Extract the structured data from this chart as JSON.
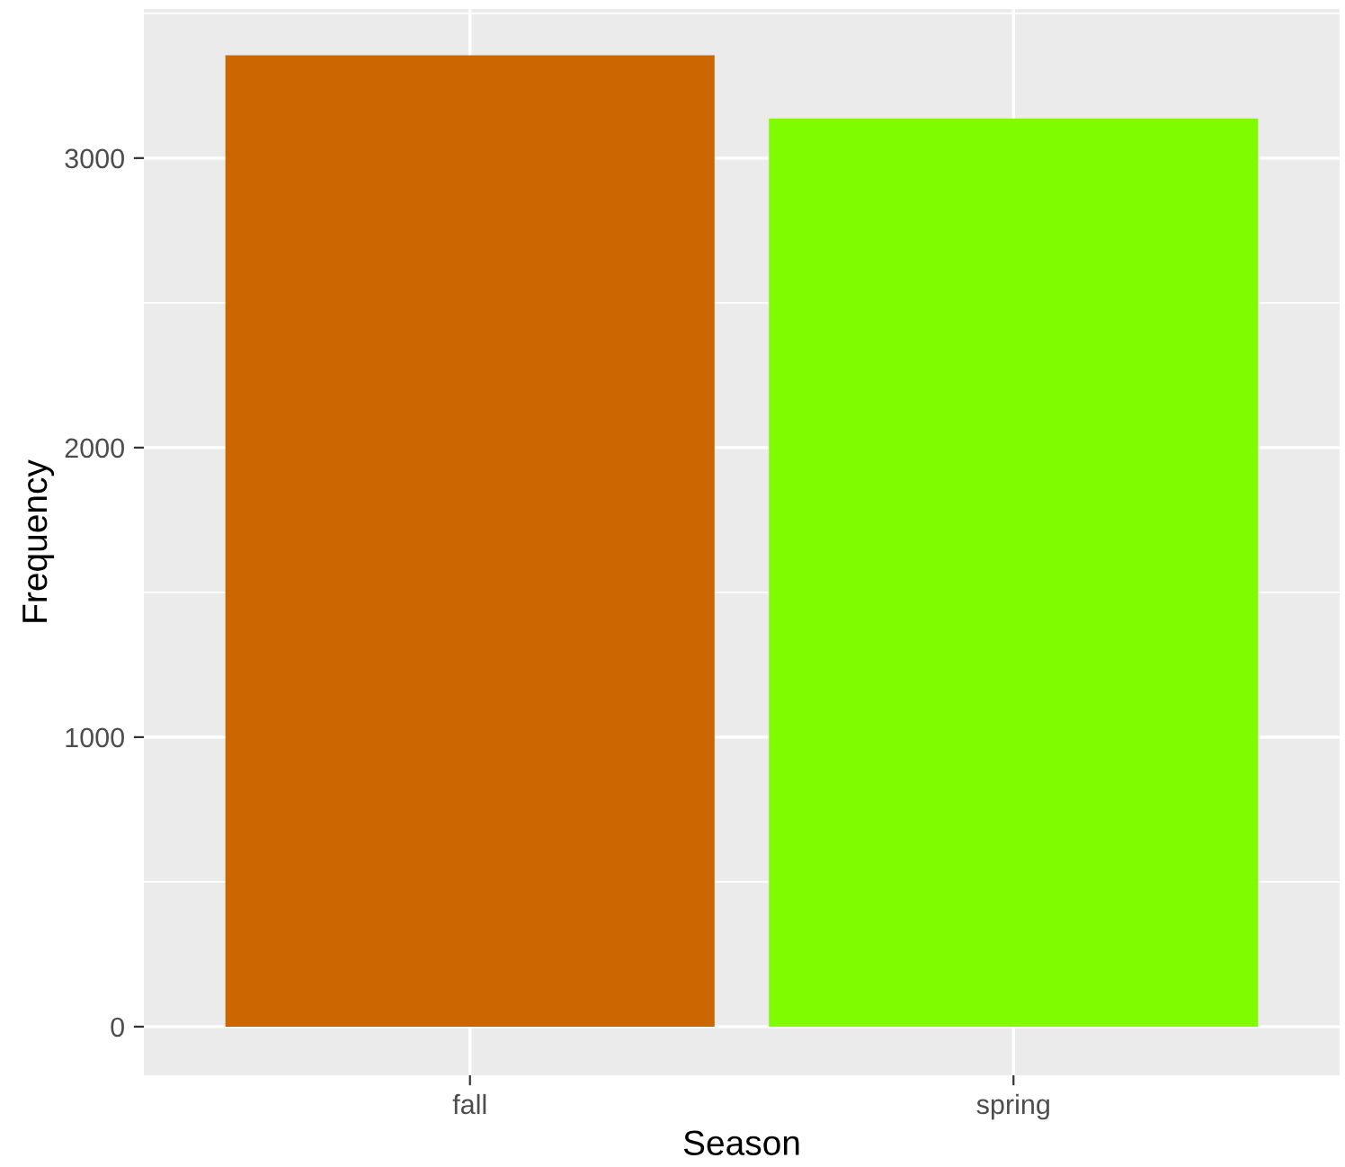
{
  "chart_data": {
    "type": "bar",
    "xlabel": "Season",
    "ylabel": "Frequency",
    "categories": [
      "fall",
      "spring"
    ],
    "values": [
      3355,
      3137
    ],
    "colors": [
      "#cc6600",
      "#80fc00"
    ],
    "ylim": [
      -168,
      3515
    ],
    "yticks": [
      0,
      1000,
      2000,
      3000
    ],
    "grid": true
  }
}
